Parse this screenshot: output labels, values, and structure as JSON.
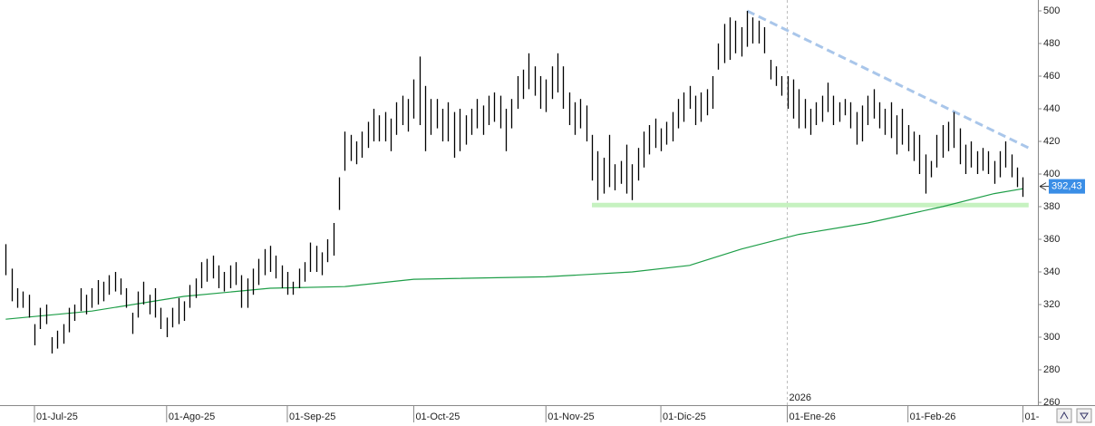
{
  "chart_data": {
    "type": "ohlc",
    "categories": [
      null,
      null,
      null,
      null,
      null,
      "01-Jul-25",
      null,
      null,
      null,
      null,
      null,
      null,
      null,
      null,
      null,
      null,
      null,
      null,
      null,
      null,
      null,
      null,
      null,
      null,
      null,
      null,
      null,
      null,
      "01-Ago-25",
      null,
      null,
      null,
      null,
      null,
      null,
      null,
      null,
      null,
      null,
      null,
      null,
      null,
      null,
      null,
      null,
      null,
      null,
      null,
      null,
      "01-Sep-25",
      null,
      null,
      null,
      null,
      null,
      null,
      null,
      null,
      null,
      null,
      null,
      null,
      null,
      null,
      null,
      null,
      null,
      null,
      null,
      null,
      null,
      "01-Oct-25",
      null,
      null,
      null,
      null,
      null,
      null,
      null,
      null,
      null,
      null,
      null,
      null,
      null,
      null,
      null,
      null,
      null,
      null,
      null,
      null,
      null,
      null,
      "01-Nov-25",
      null,
      null,
      null,
      null,
      null,
      null,
      null,
      null,
      null,
      null,
      null,
      null,
      null,
      null,
      null,
      null,
      null,
      null,
      null,
      "01-Dic-25",
      null,
      null,
      null,
      null,
      null,
      null,
      null,
      null,
      null,
      null,
      null,
      null,
      null,
      null,
      null,
      null,
      null,
      null,
      null,
      null,
      null,
      "01-Ene-26",
      null,
      null,
      null,
      null,
      null,
      null,
      null,
      null,
      null,
      null,
      null,
      null,
      null,
      null,
      null,
      null,
      null,
      null,
      null,
      null,
      "01-Feb-26",
      null,
      null,
      null,
      null,
      null,
      null,
      null,
      null,
      null,
      null,
      null,
      null,
      null,
      null,
      null,
      null,
      null,
      null,
      null,
      "01-"
    ],
    "high": [
      357,
      342,
      330,
      328,
      326,
      308,
      318,
      320,
      300,
      304,
      308,
      318,
      320,
      330,
      326,
      330,
      335,
      334,
      338,
      340,
      336,
      330,
      315,
      328,
      334,
      326,
      330,
      318,
      312,
      318,
      324,
      322,
      332,
      336,
      346,
      348,
      350,
      344,
      340,
      344,
      346,
      338,
      336,
      342,
      348,
      354,
      356,
      350,
      344,
      340,
      334,
      342,
      346,
      358,
      356,
      352,
      360,
      370,
      398,
      426,
      424,
      420,
      426,
      432,
      440,
      436,
      438,
      434,
      444,
      448,
      446,
      458,
      472,
      454,
      446,
      446,
      440,
      444,
      438,
      440,
      436,
      440,
      446,
      442,
      448,
      450,
      448,
      440,
      446,
      460,
      464,
      474,
      466,
      460,
      458,
      466,
      474,
      466,
      450,
      444,
      446,
      442,
      424,
      414,
      410,
      424,
      406,
      408,
      418,
      406,
      416,
      426,
      430,
      434,
      428,
      432,
      438,
      446,
      450,
      454,
      448,
      450,
      452,
      460,
      480,
      492,
      496,
      494,
      490,
      500,
      496,
      494,
      490,
      470,
      466,
      460,
      460,
      458,
      452,
      446,
      440,
      444,
      448,
      456,
      448,
      444,
      446,
      444,
      438,
      442,
      448,
      452,
      444,
      440,
      444,
      436,
      440,
      430,
      426,
      424,
      412,
      408,
      424,
      430,
      432,
      438,
      428,
      418,
      420,
      414,
      416,
      414,
      408,
      414,
      420,
      412,
      404,
      398
    ],
    "low": [
      338,
      322,
      318,
      318,
      312,
      295,
      305,
      308,
      290,
      293,
      296,
      303,
      310,
      316,
      314,
      318,
      320,
      322,
      326,
      328,
      326,
      318,
      302,
      312,
      320,
      314,
      312,
      305,
      300,
      306,
      308,
      310,
      318,
      324,
      330,
      334,
      336,
      330,
      328,
      330,
      332,
      318,
      318,
      326,
      332,
      338,
      340,
      336,
      330,
      326,
      326,
      330,
      334,
      340,
      340,
      338,
      346,
      350,
      378,
      402,
      408,
      406,
      410,
      416,
      420,
      420,
      420,
      414,
      424,
      430,
      426,
      434,
      430,
      414,
      424,
      428,
      420,
      420,
      410,
      414,
      418,
      424,
      428,
      424,
      430,
      432,
      428,
      414,
      428,
      440,
      446,
      452,
      448,
      440,
      438,
      446,
      450,
      440,
      430,
      424,
      428,
      420,
      396,
      384,
      388,
      392,
      390,
      394,
      388,
      384,
      396,
      404,
      412,
      416,
      414,
      418,
      420,
      428,
      432,
      440,
      430,
      432,
      436,
      440,
      464,
      468,
      470,
      474,
      472,
      478,
      480,
      480,
      474,
      458,
      454,
      448,
      440,
      434,
      428,
      428,
      424,
      430,
      432,
      438,
      430,
      432,
      436,
      428,
      418,
      420,
      430,
      434,
      428,
      424,
      422,
      412,
      418,
      414,
      408,
      400,
      388,
      398,
      404,
      410,
      414,
      416,
      406,
      400,
      404,
      400,
      402,
      400,
      394,
      398,
      404,
      398,
      392,
      386
    ],
    "bar_color": "#000000",
    "ma": {
      "color": "#1e9e48",
      "x": [
        0,
        15,
        31,
        46,
        59,
        71,
        94,
        109,
        119,
        128,
        138,
        150,
        163,
        172,
        177
      ],
      "values": [
        311,
        316,
        325,
        330,
        331,
        335.5,
        337,
        340,
        344,
        354,
        363,
        370,
        380,
        388,
        391
      ]
    },
    "trendline": {
      "color": "#a9c6ea",
      "x": [
        129,
        178
      ],
      "values": [
        500,
        416
      ]
    },
    "support": {
      "color": "#c6f2c0",
      "x": [
        102,
        178
      ],
      "values": [
        381,
        381
      ]
    },
    "year_label": "2026",
    "year_index": 136,
    "last_price": {
      "value": 392.43,
      "label": "392,43"
    },
    "ylim": [
      260,
      500
    ],
    "yticks": [
      260,
      280,
      300,
      320,
      340,
      360,
      380,
      400,
      420,
      440,
      460,
      480,
      500
    ]
  }
}
